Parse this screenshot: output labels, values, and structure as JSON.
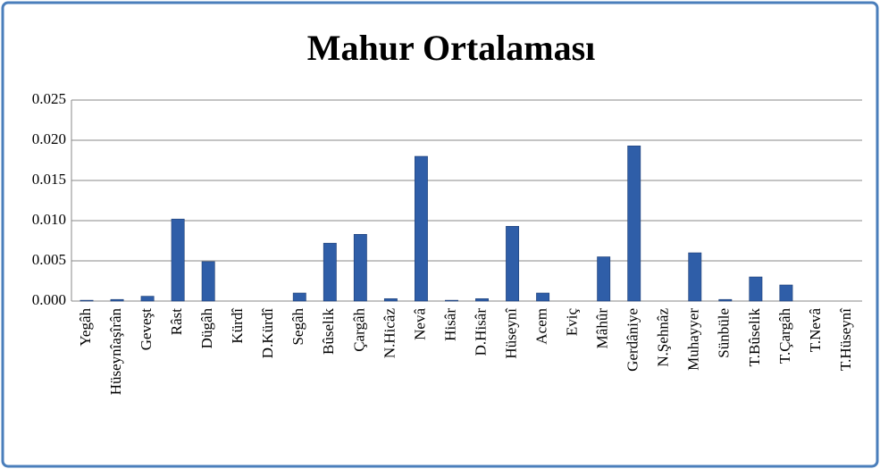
{
  "chart_data": {
    "type": "bar",
    "title": "Mahur Ortalaması",
    "categories": [
      "Yegâh",
      "Hüseynîaşîrân",
      "Geveşt",
      "Râst",
      "Dügâh",
      "Kürdî",
      "D.Kürdî",
      "Segâh",
      "Bûselik",
      "Çargâh",
      "N.Hicâz",
      "Nevâ",
      "Hisâr",
      "D.Hisâr",
      "Hüseynî",
      "Acem",
      "Eviç",
      "Mâhûr",
      "Gerdâniye",
      "N.Şehnâz",
      "Muhayyer",
      "Sünbüle",
      "T.Bûselik",
      "T.Çargâh",
      "T.Nevâ",
      "T.Hüseynî"
    ],
    "values": [
      0.0001,
      0.0002,
      0.0006,
      0.0102,
      0.0049,
      0,
      0,
      0.001,
      0.0072,
      0.0083,
      0.0003,
      0.018,
      0.0001,
      0.0003,
      0.0093,
      0.001,
      0,
      0.0055,
      0.0193,
      0,
      0.006,
      0.0002,
      0.003,
      0.002,
      0,
      0
    ],
    "color": "#2f5ea8",
    "ylim": [
      0,
      0.025
    ],
    "yticks": [
      {
        "value": 0,
        "label": "0.000"
      },
      {
        "value": 0.005,
        "label": "0.005"
      },
      {
        "value": 0.01,
        "label": "0.010"
      },
      {
        "value": 0.015,
        "label": "0.015"
      },
      {
        "value": 0.02,
        "label": "0.020"
      },
      {
        "value": 0.025,
        "label": "0.025"
      }
    ],
    "grid": true
  }
}
